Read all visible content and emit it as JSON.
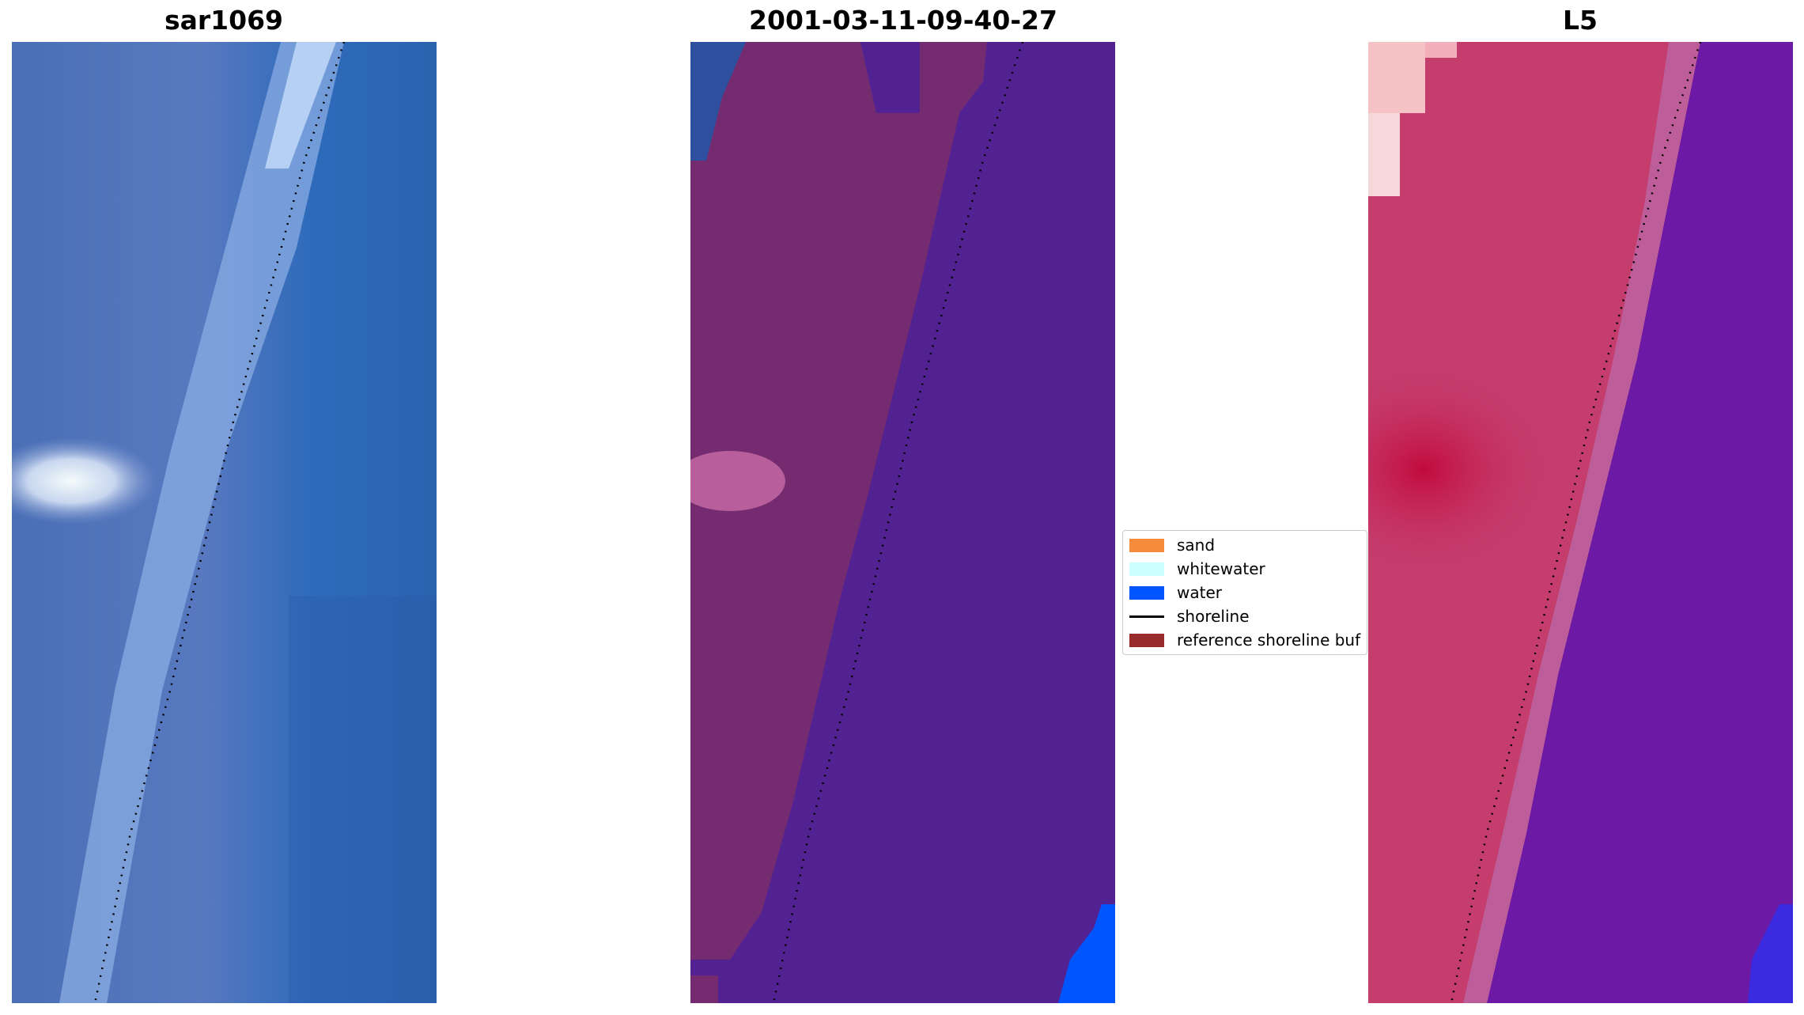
{
  "panels": [
    {
      "title": "sar1069"
    },
    {
      "title": "2001-03-11-09-40-27"
    },
    {
      "title": "L5"
    }
  ],
  "legend": {
    "items": [
      {
        "label": "sand",
        "color": "#f58b3c"
      },
      {
        "label": "whitewater",
        "color": "#ccffff"
      },
      {
        "label": "water",
        "color": "#0055ff"
      },
      {
        "label": "shoreline",
        "color": "#000000"
      },
      {
        "label": "reference shoreline buf",
        "color": "#982c2c"
      }
    ]
  }
}
